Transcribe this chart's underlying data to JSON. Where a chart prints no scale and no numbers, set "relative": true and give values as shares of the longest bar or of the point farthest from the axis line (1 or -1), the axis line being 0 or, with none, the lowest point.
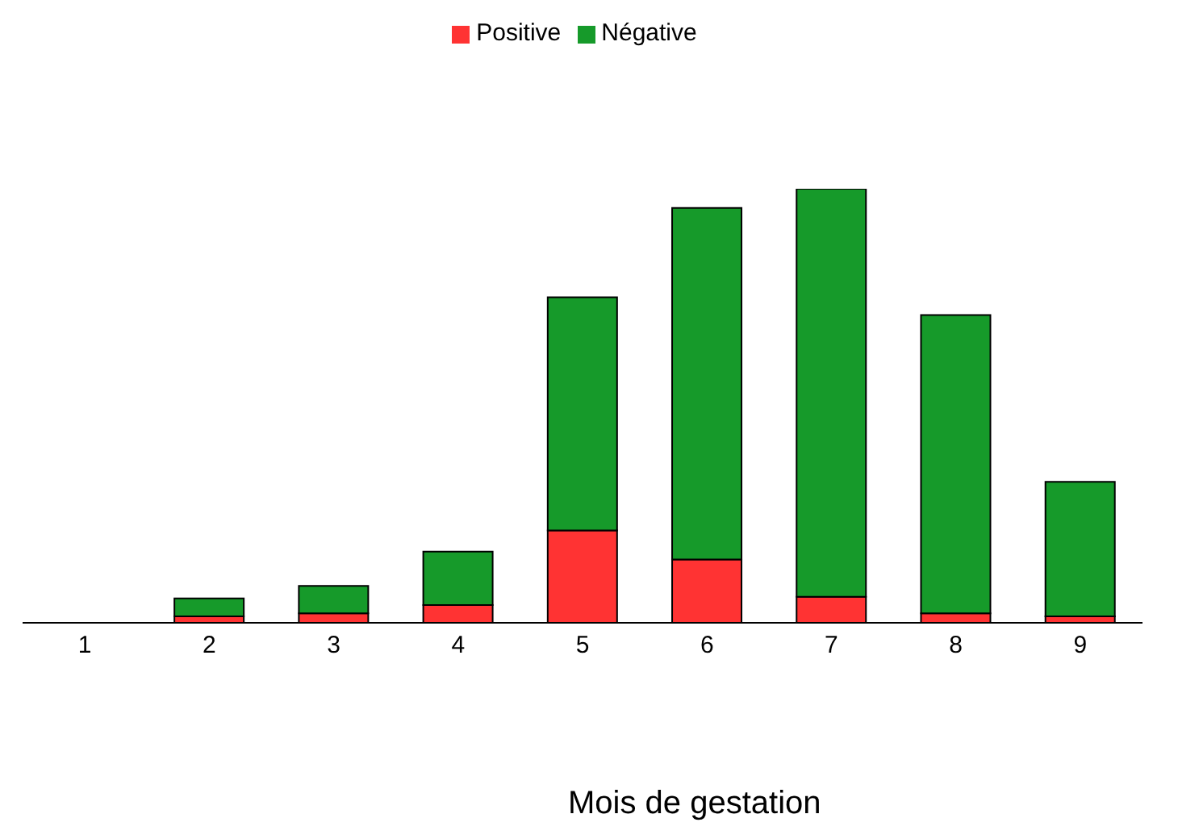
{
  "chart_data": {
    "type": "bar",
    "stacked": true,
    "relative": true,
    "xlabel": "Mois de gestation",
    "legend": "top",
    "categories": [
      "1",
      "2",
      "3",
      "4",
      "5",
      "6",
      "7",
      "8",
      "9"
    ],
    "series": [
      {
        "name": "Positive",
        "color": "#ff3333",
        "values": [
          0,
          0.015,
          0.022,
          0.041,
          0.213,
          0.146,
          0.06,
          0.022,
          0.015
        ]
      },
      {
        "name": "Négative",
        "color": "#169a2a",
        "values": [
          0,
          0.041,
          0.063,
          0.123,
          0.537,
          0.81,
          0.94,
          0.687,
          0.31
        ]
      }
    ]
  }
}
